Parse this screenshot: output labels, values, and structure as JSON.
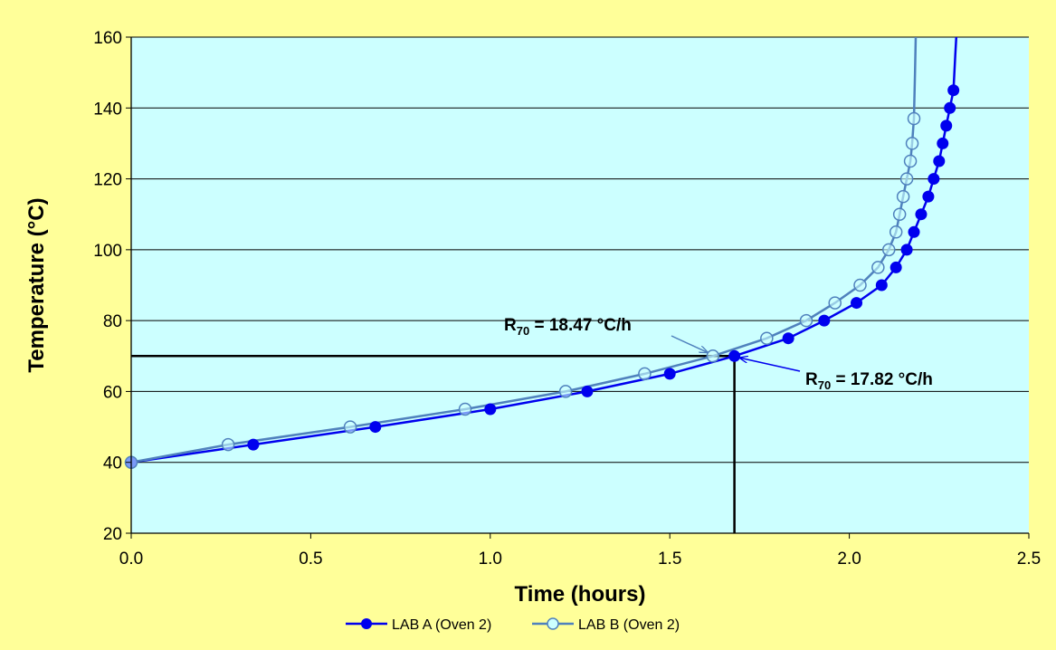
{
  "chart_data": {
    "type": "line",
    "title": "",
    "xlabel": "Time (hours)",
    "ylabel": "Temperature (°C)",
    "xlim": [
      0,
      2.5
    ],
    "ylim": [
      20,
      160
    ],
    "x_ticks": [
      "0.0",
      "0.5",
      "1.0",
      "1.5",
      "2.0",
      "2.5"
    ],
    "y_ticks": [
      "20",
      "40",
      "60",
      "80",
      "100",
      "120",
      "140",
      "160"
    ],
    "grid": "horizontal",
    "legend_position": "bottom",
    "colors": {
      "plot_background": "#ccffff",
      "page_background": "#ffff99",
      "series_a": "#0000ee",
      "series_b": "#4f81bd"
    },
    "series": [
      {
        "name": "LAB A (Oven 2)",
        "marker": "filled-circle",
        "points": [
          [
            0.0,
            40
          ],
          [
            0.34,
            45
          ],
          [
            0.68,
            50
          ],
          [
            1.0,
            55
          ],
          [
            1.27,
            60
          ],
          [
            1.5,
            65
          ],
          [
            1.68,
            70
          ],
          [
            1.83,
            75
          ],
          [
            1.93,
            80
          ],
          [
            2.02,
            85
          ],
          [
            2.09,
            90
          ],
          [
            2.13,
            95
          ],
          [
            2.16,
            100
          ],
          [
            2.18,
            105
          ],
          [
            2.2,
            110
          ],
          [
            2.22,
            115
          ],
          [
            2.235,
            120
          ],
          [
            2.25,
            125
          ],
          [
            2.26,
            130
          ],
          [
            2.27,
            135
          ],
          [
            2.28,
            140
          ],
          [
            2.29,
            145
          ]
        ],
        "curve_extension": [
          [
            2.295,
            155
          ],
          [
            2.298,
            160
          ]
        ]
      },
      {
        "name": "LAB B (Oven 2)",
        "marker": "hollow-circle",
        "points": [
          [
            0.0,
            40
          ],
          [
            0.27,
            45
          ],
          [
            0.61,
            50
          ],
          [
            0.93,
            55
          ],
          [
            1.21,
            60
          ],
          [
            1.43,
            65
          ],
          [
            1.62,
            70
          ],
          [
            1.77,
            75
          ],
          [
            1.88,
            80
          ],
          [
            1.96,
            85
          ],
          [
            2.03,
            90
          ],
          [
            2.08,
            95
          ],
          [
            2.11,
            100
          ],
          [
            2.13,
            105
          ],
          [
            2.14,
            110
          ],
          [
            2.15,
            115
          ],
          [
            2.16,
            120
          ],
          [
            2.17,
            125
          ],
          [
            2.175,
            130
          ],
          [
            2.18,
            137
          ]
        ],
        "curve_extension": [
          [
            2.183,
            150
          ],
          [
            2.185,
            160
          ]
        ]
      }
    ],
    "reference_lines": {
      "horizontal_y": 70,
      "vertical_x": 1.68
    },
    "annotations": [
      {
        "id": "lab-b-rate",
        "prefix": "R",
        "subscript": "70",
        "suffix": " = 18.47 °C/h",
        "arrow_to": [
          1.62,
          70
        ]
      },
      {
        "id": "lab-a-rate",
        "prefix": "R",
        "subscript": "70",
        "suffix": " = 17.82 °C/h",
        "arrow_to": [
          1.68,
          70
        ]
      }
    ]
  }
}
